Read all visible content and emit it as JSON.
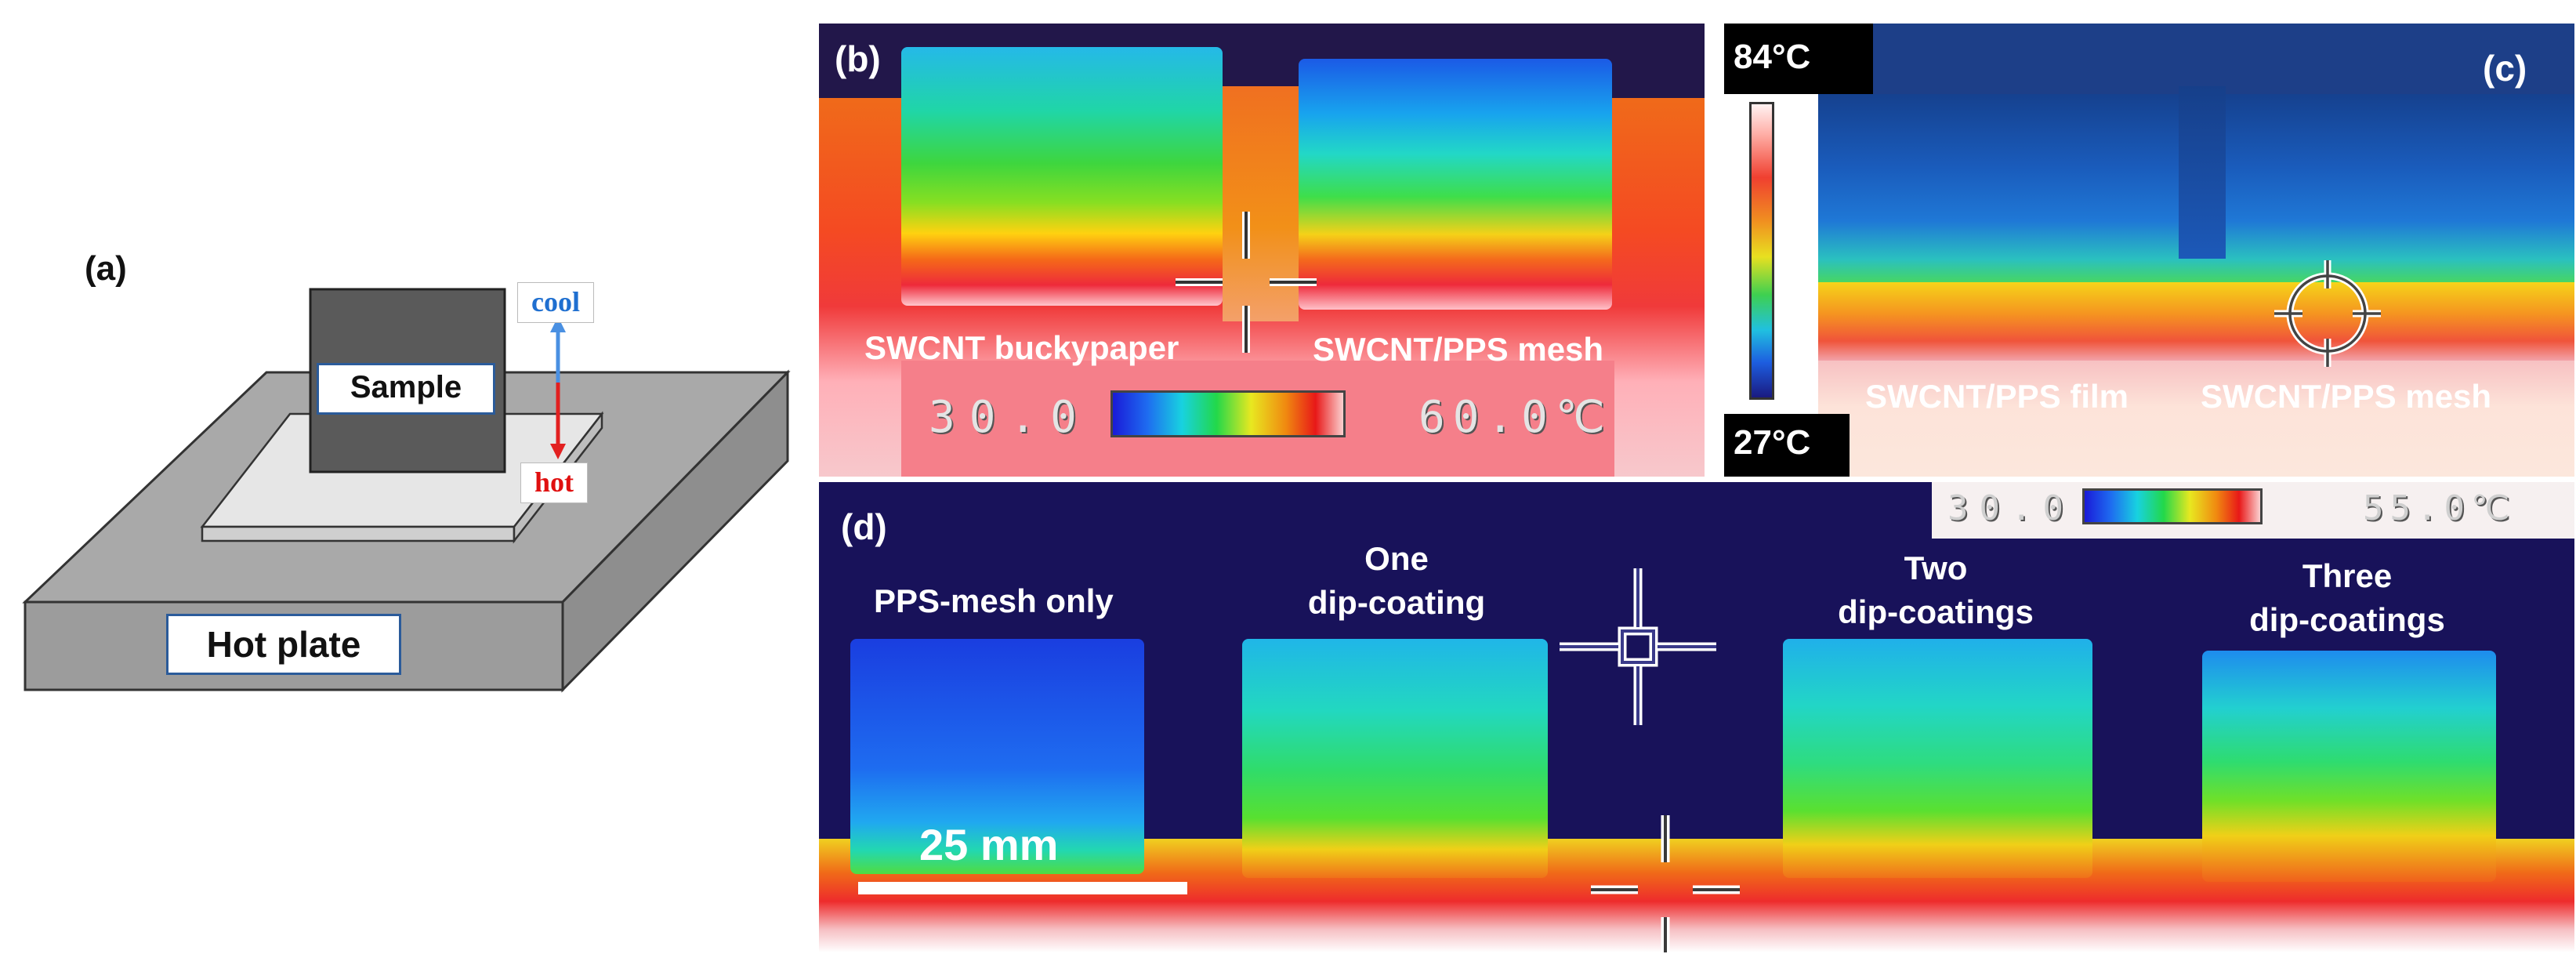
{
  "panels": {
    "a": {
      "label": "(a)",
      "sample_label": "Sample",
      "hot_plate_label": "Hot plate",
      "cool_label": "cool",
      "hot_label": "hot",
      "colors": {
        "cool": "#1f6fd0",
        "hot": "#e01010"
      }
    },
    "b": {
      "label": "(b)",
      "left_sample": "SWCNT buckypaper",
      "right_sample": "SWCNT/PPS mesh",
      "scale_min": "30.0",
      "scale_max": "60.0℃"
    },
    "c": {
      "label": "(c)",
      "temp_max": "84°C",
      "temp_min": "27°C",
      "left_sample": "SWCNT/PPS film",
      "right_sample": "SWCNT/PPS mesh"
    },
    "d": {
      "label": "(d)",
      "scale_min": "30.0",
      "scale_max": "55.0℃",
      "samples": [
        "PPS-mesh only",
        "One\ndip-coating",
        "Two\ndip-coatings",
        "Three\ndip-coatings"
      ],
      "scale_bar": "25 mm"
    }
  }
}
